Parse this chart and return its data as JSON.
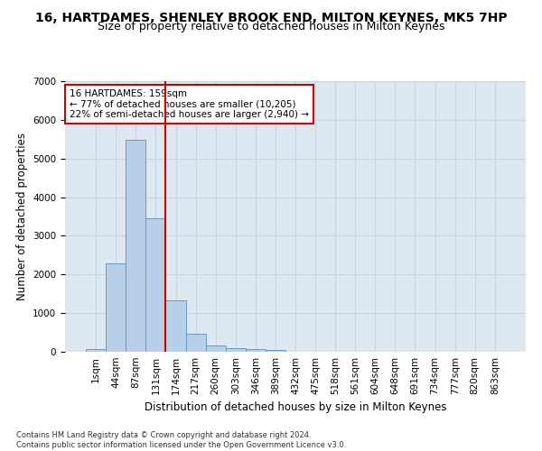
{
  "title": "16, HARTDAMES, SHENLEY BROOK END, MILTON KEYNES, MK5 7HP",
  "subtitle": "Size of property relative to detached houses in Milton Keynes",
  "xlabel": "Distribution of detached houses by size in Milton Keynes",
  "ylabel": "Number of detached properties",
  "categories": [
    "1sqm",
    "44sqm",
    "87sqm",
    "131sqm",
    "174sqm",
    "217sqm",
    "260sqm",
    "303sqm",
    "346sqm",
    "389sqm",
    "432sqm",
    "475sqm",
    "518sqm",
    "561sqm",
    "604sqm",
    "648sqm",
    "691sqm",
    "734sqm",
    "777sqm",
    "820sqm",
    "863sqm"
  ],
  "bar_heights": [
    80,
    2280,
    5480,
    3450,
    1320,
    470,
    170,
    100,
    75,
    45,
    0,
    0,
    0,
    0,
    0,
    0,
    0,
    0,
    0,
    0,
    0
  ],
  "bar_color": "#b8cfe8",
  "bar_edge_color": "#6699cc",
  "grid_color": "#c8d4e8",
  "background_color": "#dde8f0",
  "vline_color": "#cc0000",
  "vline_pos": 3.5,
  "annotation_text": "16 HARTDAMES: 159sqm\n← 77% of detached houses are smaller (10,205)\n22% of semi-detached houses are larger (2,940) →",
  "annotation_box_color": "#ffffff",
  "annotation_box_edge": "#cc0000",
  "ylim": [
    0,
    7000
  ],
  "yticks": [
    0,
    1000,
    2000,
    3000,
    4000,
    5000,
    6000,
    7000
  ],
  "footer": "Contains HM Land Registry data © Crown copyright and database right 2024.\nContains public sector information licensed under the Open Government Licence v3.0.",
  "title_fontsize": 10,
  "subtitle_fontsize": 9,
  "xlabel_fontsize": 8.5,
  "ylabel_fontsize": 8.5,
  "tick_fontsize": 7.5,
  "annotation_fontsize": 7.5,
  "footer_fontsize": 6
}
